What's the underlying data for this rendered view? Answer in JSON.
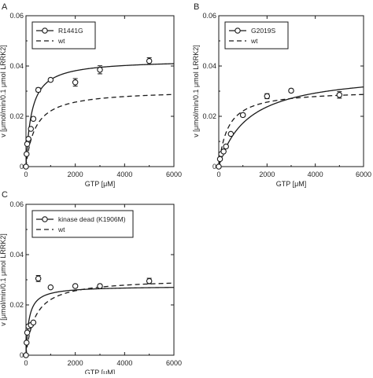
{
  "figure": {
    "colors": {
      "ink": "#1a1a1a",
      "background": "#ffffff"
    }
  },
  "chart_data": [
    {
      "panel_label": "A",
      "type": "line",
      "xlabel": "GTP [μM]",
      "ylabel": "v [μmol/min/0.1 μmol LRRK2]",
      "xlim": [
        0,
        6000
      ],
      "ylim": [
        0,
        0.06
      ],
      "xticks": [
        0,
        2000,
        4000,
        6000
      ],
      "yticks": [
        0,
        0.02,
        0.04,
        0.06
      ],
      "xtick_labels": [
        "0",
        "2000",
        "4000",
        "6000"
      ],
      "ytick_labels": [
        "0",
        "0.02",
        "0.04",
        "0.06"
      ],
      "legend_position": "top-left",
      "series": [
        {
          "name": "R1441G",
          "style": "solid-with-open-circles",
          "points": [
            {
              "x": 0,
              "y": 0,
              "err": 0
            },
            {
              "x": 25,
              "y": 0.005,
              "err": 0
            },
            {
              "x": 50,
              "y": 0.009,
              "err": 0
            },
            {
              "x": 100,
              "y": 0.011,
              "err": 0
            },
            {
              "x": 200,
              "y": 0.015,
              "err": 0
            },
            {
              "x": 300,
              "y": 0.019,
              "err": 0
            },
            {
              "x": 500,
              "y": 0.0305,
              "err": 0.0008
            },
            {
              "x": 1000,
              "y": 0.0345,
              "err": 0.0006
            },
            {
              "x": 2000,
              "y": 0.0335,
              "err": 0.0015
            },
            {
              "x": 3000,
              "y": 0.0385,
              "err": 0.0016
            },
            {
              "x": 5000,
              "y": 0.042,
              "err": 0.0013
            }
          ],
          "curve": {
            "vmax": 0.0425,
            "km": 230
          }
        },
        {
          "name": "wt",
          "style": "dashed",
          "curve": {
            "vmax": 0.0305,
            "km": 380
          }
        }
      ]
    },
    {
      "panel_label": "B",
      "type": "line",
      "xlabel": "GTP [μM]",
      "ylabel": "v [μmol/min/0.1 μmol LRRK2]",
      "xlim": [
        0,
        6000
      ],
      "ylim": [
        0,
        0.06
      ],
      "xticks": [
        0,
        2000,
        4000,
        6000
      ],
      "yticks": [
        0,
        0.02,
        0.04,
        0.06
      ],
      "xtick_labels": [
        "0",
        "2000",
        "4000",
        "6000"
      ],
      "ytick_labels": [
        "0",
        "0.02",
        "0.04",
        "0.06"
      ],
      "legend_position": "top-left",
      "series": [
        {
          "name": "G2019S",
          "style": "solid-with-open-circles",
          "points": [
            {
              "x": 0,
              "y": 0,
              "err": 0
            },
            {
              "x": 50,
              "y": 0.003,
              "err": 0
            },
            {
              "x": 100,
              "y": 0.005,
              "err": 0
            },
            {
              "x": 200,
              "y": 0.006,
              "err": 0
            },
            {
              "x": 300,
              "y": 0.008,
              "err": 0
            },
            {
              "x": 500,
              "y": 0.013,
              "err": 0
            },
            {
              "x": 1000,
              "y": 0.0205,
              "err": 0.0007
            },
            {
              "x": 2000,
              "y": 0.028,
              "err": 0.001
            },
            {
              "x": 3000,
              "y": 0.0302,
              "err": 0.0007
            },
            {
              "x": 5000,
              "y": 0.0285,
              "err": 0.0013
            }
          ],
          "curve": {
            "vmax": 0.038,
            "km": 1200
          }
        },
        {
          "name": "wt",
          "style": "dashed",
          "curve": {
            "vmax": 0.0305,
            "km": 380
          }
        }
      ]
    },
    {
      "panel_label": "C",
      "type": "line",
      "xlabel": "GTP [μM]",
      "ylabel": "v [μmol/min/0.1 μmol LRRK2]",
      "xlim": [
        0,
        6000
      ],
      "ylim": [
        0,
        0.06
      ],
      "xticks": [
        0,
        2000,
        4000,
        6000
      ],
      "yticks": [
        0,
        0.02,
        0.04,
        0.06
      ],
      "xtick_labels": [
        "0",
        "2000",
        "4000",
        "6000"
      ],
      "ytick_labels": [
        "0",
        "0.02",
        "0.04",
        "0.06"
      ],
      "legend_position": "top-left",
      "series": [
        {
          "name": "kinase dead (K1906M)",
          "style": "solid-with-open-circles",
          "points": [
            {
              "x": 0,
              "y": 0,
              "err": 0
            },
            {
              "x": 25,
              "y": 0.005,
              "err": 0
            },
            {
              "x": 50,
              "y": 0.009,
              "err": 0
            },
            {
              "x": 100,
              "y": 0.0115,
              "err": 0
            },
            {
              "x": 200,
              "y": 0.012,
              "err": 0
            },
            {
              "x": 300,
              "y": 0.013,
              "err": 0
            },
            {
              "x": 500,
              "y": 0.0305,
              "err": 0.0012
            },
            {
              "x": 1000,
              "y": 0.027,
              "err": 0
            },
            {
              "x": 2000,
              "y": 0.0275,
              "err": 0.0006
            },
            {
              "x": 3000,
              "y": 0.0275,
              "err": 0.0007
            },
            {
              "x": 5000,
              "y": 0.0295,
              "err": 0.0011
            }
          ],
          "curve": {
            "vmax": 0.0275,
            "km": 120
          }
        },
        {
          "name": "wt",
          "style": "dashed",
          "curve": {
            "vmax": 0.0305,
            "km": 380
          }
        }
      ]
    }
  ]
}
